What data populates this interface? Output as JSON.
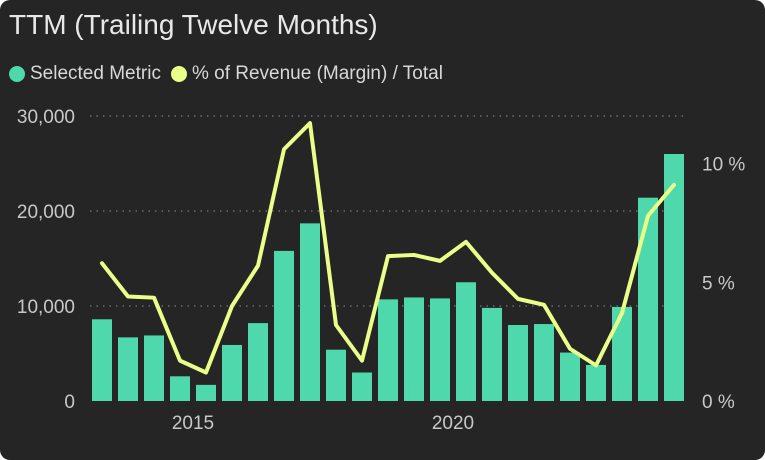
{
  "chart_data": {
    "type": "bar",
    "title": "TTM (Trailing Twelve Months)",
    "legend": {
      "placement": "top-left",
      "entries": [
        {
          "label": "Selected Metric",
          "color": "#4fd8ab"
        },
        {
          "label": "% of Revenue (Margin) / Total",
          "color": "#e9ff8a"
        }
      ]
    },
    "x_tick_labels": [
      {
        "label": "2015",
        "at_index": 3.5
      },
      {
        "label": "2020",
        "at_index": 13.5
      }
    ],
    "y_left": {
      "ylim": [
        0,
        30000
      ],
      "ticks": [
        0,
        10000,
        20000,
        30000
      ],
      "tick_labels": [
        "0",
        "10,000",
        "20,000",
        "30,000"
      ]
    },
    "y_right": {
      "ylim": [
        0,
        12
      ],
      "ticks": [
        0,
        5,
        10
      ],
      "tick_labels": [
        "0 %",
        "5 %",
        "10 %"
      ]
    },
    "grid": true,
    "series": [
      {
        "name": "Selected Metric",
        "type": "bar",
        "axis": "left",
        "color": "#4fd8ab",
        "values": [
          8600,
          6700,
          6900,
          2600,
          1700,
          5900,
          8200,
          15800,
          18700,
          5400,
          3000,
          10700,
          10900,
          10800,
          12500,
          9800,
          8000,
          8100,
          5100,
          3800,
          9900,
          21400,
          26000
        ]
      },
      {
        "name": "% of Revenue (Margin) / Total",
        "type": "line",
        "axis": "right",
        "color": "#e9ff8a",
        "values": [
          5.8,
          4.4,
          4.35,
          1.7,
          1.2,
          4.0,
          5.7,
          10.6,
          11.7,
          3.2,
          1.7,
          6.1,
          6.15,
          5.9,
          6.7,
          5.4,
          4.3,
          4.05,
          2.2,
          1.5,
          3.7,
          7.8,
          9.1
        ]
      }
    ]
  }
}
